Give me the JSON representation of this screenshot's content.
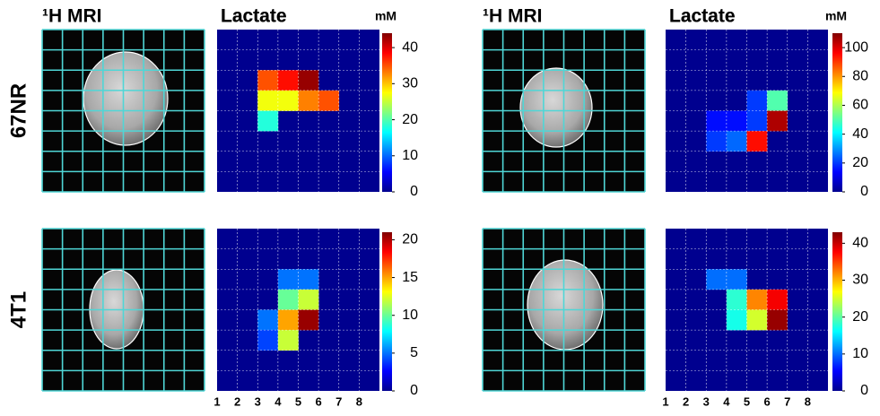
{
  "chart_data": [
    {
      "type": "heatmap",
      "image_label": "¹H MRI",
      "title": "Lactate",
      "unit": "mM",
      "row_label": "67NR",
      "values": [
        [
          null,
          null,
          null,
          null,
          null,
          null,
          null,
          null
        ],
        [
          null,
          null,
          null,
          null,
          null,
          null,
          null,
          null
        ],
        [
          null,
          null,
          35,
          38,
          43,
          null,
          null,
          null
        ],
        [
          null,
          null,
          27,
          27,
          33,
          35,
          null,
          null
        ],
        [
          null,
          null,
          18,
          null,
          null,
          null,
          null,
          null
        ],
        [
          null,
          null,
          null,
          null,
          null,
          null,
          null,
          null
        ],
        [
          null,
          null,
          null,
          null,
          null,
          null,
          null,
          null
        ],
        [
          null,
          null,
          null,
          null,
          null,
          null,
          null,
          null
        ]
      ],
      "ylim": [
        0,
        44
      ],
      "yticks": [
        0,
        10,
        20,
        30,
        40
      ]
    },
    {
      "type": "heatmap",
      "image_label": "¹H MRI",
      "title": "Lactate",
      "unit": "mM",
      "values": [
        [
          null,
          null,
          null,
          null,
          null,
          null,
          null,
          null
        ],
        [
          null,
          null,
          null,
          null,
          null,
          null,
          null,
          null
        ],
        [
          null,
          null,
          null,
          null,
          null,
          null,
          null,
          null
        ],
        [
          null,
          null,
          null,
          null,
          20,
          50,
          null,
          null
        ],
        [
          null,
          null,
          15,
          15,
          20,
          105,
          null,
          null
        ],
        [
          null,
          null,
          20,
          25,
          95,
          null,
          null,
          null
        ],
        [
          null,
          null,
          null,
          null,
          null,
          null,
          null,
          null
        ],
        [
          null,
          null,
          null,
          null,
          null,
          null,
          null,
          null
        ]
      ],
      "ylim": [
        0,
        110
      ],
      "yticks": [
        0,
        20,
        40,
        60,
        80,
        100
      ]
    },
    {
      "type": "heatmap",
      "title": "Lactate",
      "row_label": "4T1",
      "values": [
        [
          null,
          null,
          null,
          null,
          null,
          null,
          null,
          null
        ],
        [
          null,
          null,
          null,
          null,
          null,
          null,
          null,
          null
        ],
        [
          null,
          null,
          null,
          5,
          5,
          null,
          null,
          null
        ],
        [
          null,
          null,
          null,
          10,
          12,
          null,
          null,
          null
        ],
        [
          null,
          null,
          5,
          15,
          20.5,
          null,
          null,
          null
        ],
        [
          null,
          null,
          4,
          12,
          null,
          null,
          null,
          null
        ],
        [
          null,
          null,
          null,
          null,
          null,
          null,
          null,
          null
        ],
        [
          null,
          null,
          null,
          null,
          null,
          null,
          null,
          null
        ]
      ],
      "ylim": [
        0,
        21
      ],
      "yticks": [
        0,
        5,
        10,
        15,
        20
      ],
      "xticks": [
        1,
        2,
        3,
        4,
        5,
        6,
        7,
        8
      ]
    },
    {
      "type": "heatmap",
      "title": "Lactate",
      "values": [
        [
          null,
          null,
          null,
          null,
          null,
          null,
          null,
          null
        ],
        [
          null,
          null,
          null,
          null,
          null,
          null,
          null,
          null
        ],
        [
          null,
          null,
          10,
          10,
          null,
          null,
          null,
          null
        ],
        [
          null,
          null,
          null,
          18,
          32,
          38,
          null,
          null
        ],
        [
          null,
          null,
          null,
          17,
          25,
          42,
          null,
          null
        ],
        [
          null,
          null,
          null,
          null,
          null,
          null,
          null,
          null
        ],
        [
          null,
          null,
          null,
          null,
          null,
          null,
          null,
          null
        ],
        [
          null,
          null,
          null,
          null,
          null,
          null,
          null,
          null
        ]
      ],
      "ylim": [
        0,
        43
      ],
      "yticks": [
        0,
        10,
        20,
        30,
        40
      ],
      "xticks": [
        1,
        2,
        3,
        4,
        5,
        6,
        7,
        8
      ]
    }
  ]
}
